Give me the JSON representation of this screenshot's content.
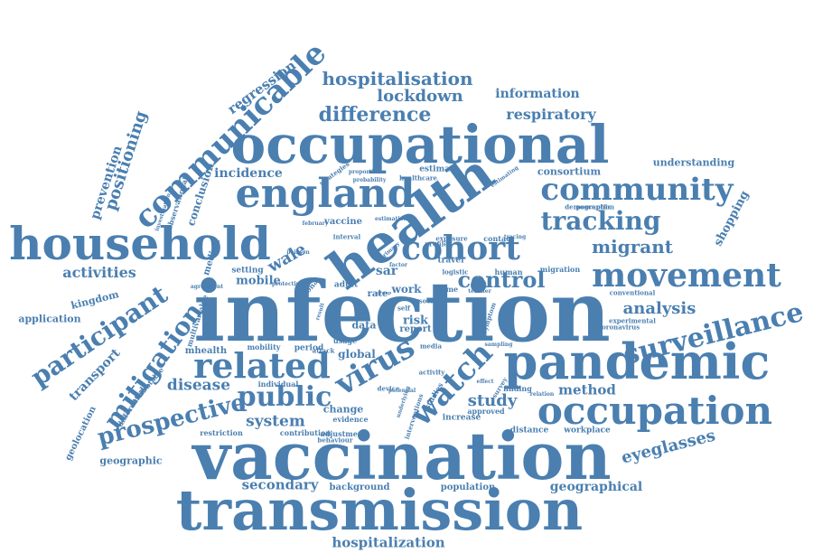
{
  "color": "#4a7fb0",
  "words": [
    "infection",
    "vaccination",
    "transmission",
    "occupational",
    "health",
    "pandemic",
    "household",
    "england",
    "occupation",
    "communicable",
    "cohort",
    "movement",
    "community",
    "tracking",
    "related",
    "participant",
    "surveillance",
    "mitigation",
    "virus",
    "watch",
    "public",
    "prospective",
    "hospitalisation",
    "difference",
    "control",
    "lockdown",
    "eyeglasses",
    "positioning",
    "respiratory",
    "information",
    "migrant",
    "analysis",
    "regression",
    "study",
    "disease",
    "system",
    "activities",
    "prevention",
    "transport",
    "method",
    "secondary",
    "hospitalization",
    "geographical",
    "geographic",
    "incidence",
    "shopping",
    "consortium",
    "understanding",
    "mobile",
    "wale",
    "work",
    "sar",
    "data",
    "risk",
    "report",
    "geolocation",
    "application",
    "kingdom",
    "mhealth",
    "conclusion",
    "background",
    "population",
    "global",
    "adjustment",
    "evidence",
    "change",
    "finding",
    "distance",
    "workplace",
    "setting",
    "median",
    "vaccine",
    "contact",
    "estimate",
    "human",
    "adult",
    "rate",
    "media",
    "device",
    "activity",
    "approved",
    "restriction",
    "differential",
    "attributable",
    "multivariable",
    "mobility",
    "period",
    "individual",
    "contribution",
    "experimental",
    "conventional",
    "coronavirus",
    "demographic",
    "studies",
    "survey",
    "symptom",
    "increase",
    "self",
    "social",
    "logistic",
    "exposure",
    "profile",
    "time",
    "travel",
    "interval",
    "strategies",
    "probability",
    "proportion",
    "healthcare",
    "investigation",
    "observational",
    "agreement",
    "national",
    "primary",
    "wave",
    "teacher",
    "attack",
    "perception",
    "migration",
    "estimating",
    "behaviour",
    "interventions",
    "usage",
    "factor",
    "group",
    "effect",
    "relation",
    "estimation",
    "february",
    "protective",
    "poisson",
    "sampling",
    "potential",
    "underlying",
    "result",
    "tracing",
    "reduction"
  ]
}
